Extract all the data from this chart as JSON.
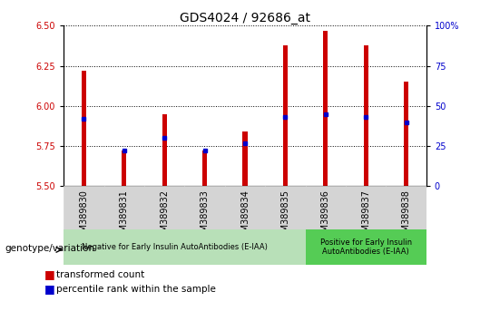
{
  "title": "GDS4024 / 92686_at",
  "samples": [
    "GSM389830",
    "GSM389831",
    "GSM389832",
    "GSM389833",
    "GSM389834",
    "GSM389835",
    "GSM389836",
    "GSM389837",
    "GSM389838"
  ],
  "transformed_count": [
    6.22,
    5.72,
    5.95,
    5.72,
    5.84,
    6.38,
    6.47,
    6.38,
    6.15
  ],
  "percentile_rank": [
    42,
    22,
    30,
    22,
    27,
    43,
    45,
    43,
    40
  ],
  "ylim_left": [
    5.5,
    6.5
  ],
  "ylim_right": [
    0,
    100
  ],
  "yticks_left": [
    5.5,
    5.75,
    6.0,
    6.25,
    6.5
  ],
  "yticks_right": [
    0,
    25,
    50,
    75,
    100
  ],
  "bar_color": "#cc0000",
  "dot_color": "#0000cc",
  "group1_count": 6,
  "group2_count": 3,
  "group1_label": "Negative for Early Insulin AutoAntibodies (E-IAA)",
  "group2_label": "Positive for Early Insulin\nAutoAntibodies (E-IAA)",
  "group1_color": "#b8e0b8",
  "group2_color": "#55cc55",
  "xlabel_label": "genotype/variation",
  "bar_width": 0.12,
  "base_value": 5.5,
  "title_fontsize": 10,
  "tick_fontsize": 7,
  "label_fontsize": 7.5,
  "legend_fontsize": 7.5,
  "right_tick_color": "#0000cc",
  "left_tick_color": "#cc0000",
  "xticklabel_bg": "#d4d4d4"
}
